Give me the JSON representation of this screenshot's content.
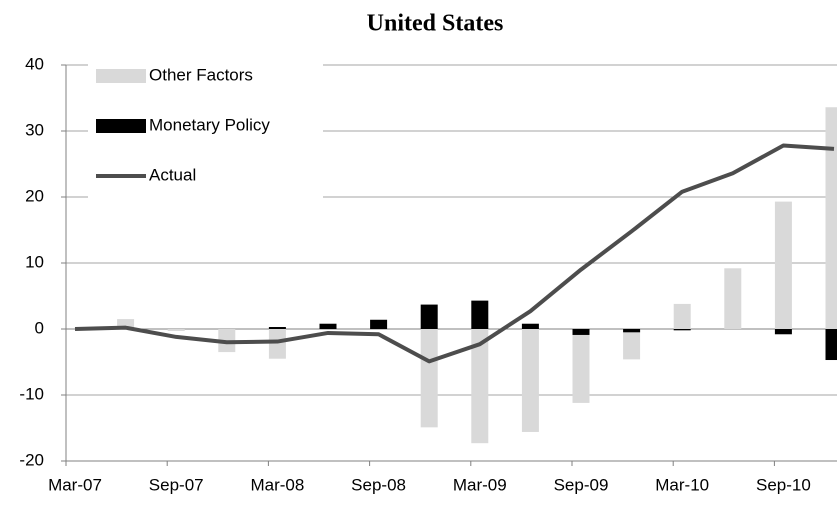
{
  "chart_data": {
    "type": "bar",
    "title": "United States",
    "categories": [
      "Mar-07",
      null,
      "Sep-07",
      null,
      "Mar-08",
      null,
      "Sep-08",
      null,
      "Mar-09",
      null,
      "Sep-09",
      null,
      "Mar-10",
      null,
      "Sep-10",
      null
    ],
    "series": [
      {
        "name": "Other Factors",
        "type": "bar",
        "color": "#d9d9d9",
        "values": [
          0,
          1.5,
          -0.3,
          -3.5,
          -4.5,
          0,
          0,
          -14.9,
          -17.3,
          -15.6,
          -11.2,
          -4.6,
          3.8,
          9.2,
          19.3,
          33.6
        ]
      },
      {
        "name": "Monetary Policy",
        "type": "bar",
        "color": "#000000",
        "values": [
          0,
          0,
          0,
          0,
          0.3,
          0.8,
          1.4,
          3.7,
          4.3,
          0.8,
          -0.9,
          -0.5,
          -0.2,
          0,
          -0.8,
          -4.7
        ]
      },
      {
        "name": "Actual",
        "type": "line",
        "color": "#4d4d4d",
        "values": [
          0,
          0.2,
          -1.2,
          -2,
          -1.9,
          -0.6,
          -0.8,
          -4.9,
          -2.3,
          2.7,
          9,
          14.8,
          20.8,
          23.6,
          27.8,
          27.3
        ]
      }
    ],
    "ylim": [
      -20,
      40
    ],
    "yticks": [
      -20,
      -10,
      0,
      10,
      20,
      30,
      40
    ],
    "grid": true,
    "legend": "top-left"
  }
}
